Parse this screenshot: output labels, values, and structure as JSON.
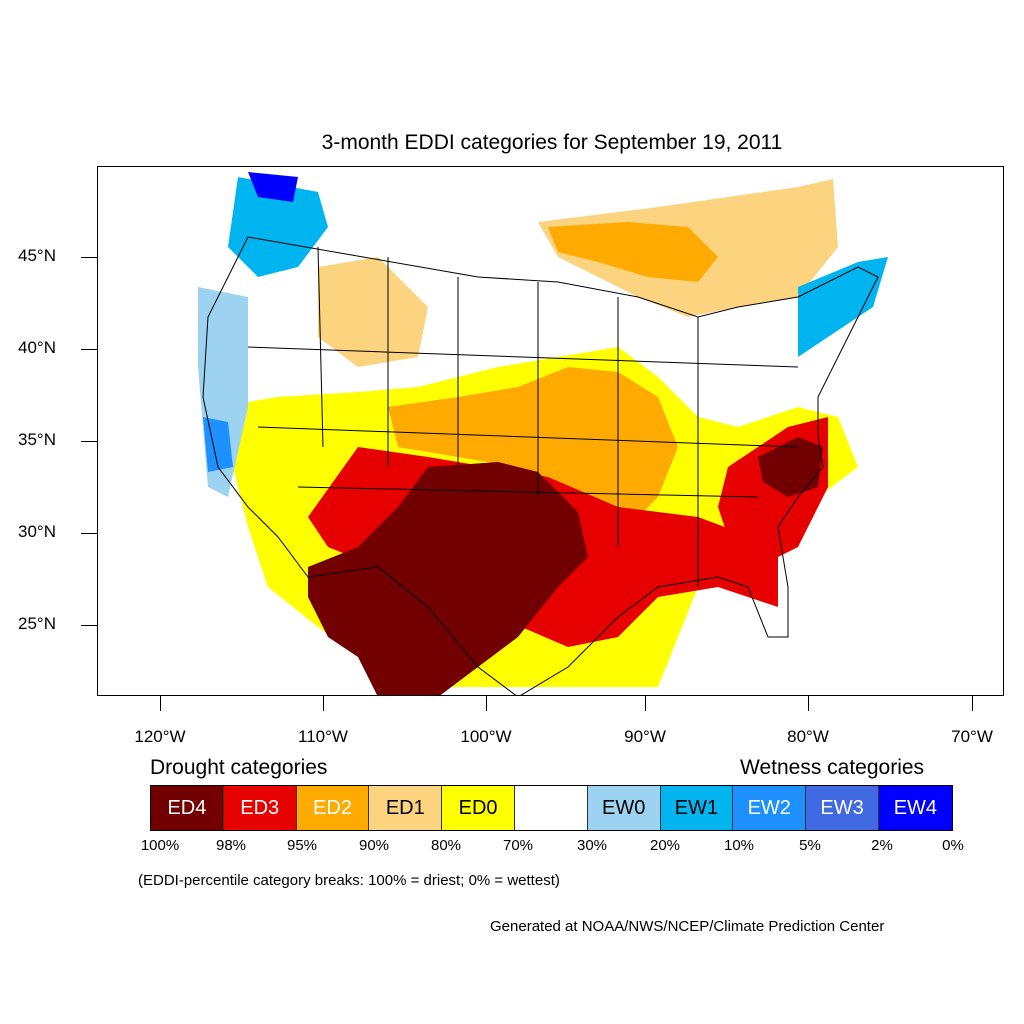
{
  "title": "3-month EDDI categories for September 19, 2011",
  "lat_labels": [
    "45°N",
    "40°N",
    "35°N",
    "30°N",
    "25°N"
  ],
  "lon_labels": [
    "120°W",
    "110°W",
    "100°W",
    "90°W",
    "80°W",
    "70°W"
  ],
  "legend": {
    "drought_heading": "Drought categories",
    "wetness_heading": "Wetness categories",
    "categories": [
      {
        "label": "ED4",
        "color": "#730000",
        "text_color": "#ffffff"
      },
      {
        "label": "ED3",
        "color": "#e60000",
        "text_color": "#ffffff"
      },
      {
        "label": "ED2",
        "color": "#ffaa00",
        "text_color": "#ffffff"
      },
      {
        "label": "ED1",
        "color": "#fcd37f",
        "text_color": "#000000"
      },
      {
        "label": "ED0",
        "color": "#ffff00",
        "text_color": "#000000"
      },
      {
        "label": "",
        "color": "#ffffff",
        "text_color": "#000000"
      },
      {
        "label": "EW0",
        "color": "#9dd3f0",
        "text_color": "#000000"
      },
      {
        "label": "EW1",
        "color": "#00b4f0",
        "text_color": "#000000"
      },
      {
        "label": "EW2",
        "color": "#1e90ff",
        "text_color": "#ffffff"
      },
      {
        "label": "EW3",
        "color": "#4169e1",
        "text_color": "#ffffff"
      },
      {
        "label": "EW4",
        "color": "#0000ff",
        "text_color": "#ffffff"
      }
    ],
    "percent_breaks": [
      "100%",
      "98%",
      "95%",
      "90%",
      "80%",
      "70%",
      "30%",
      "20%",
      "10%",
      "5%",
      "2%",
      "0%"
    ]
  },
  "note": "(EDDI-percentile category breaks: 100% = driest; 0% = wettest)",
  "credit": "Generated at NOAA/NWS/NCEP/Climate Prediction Center"
}
